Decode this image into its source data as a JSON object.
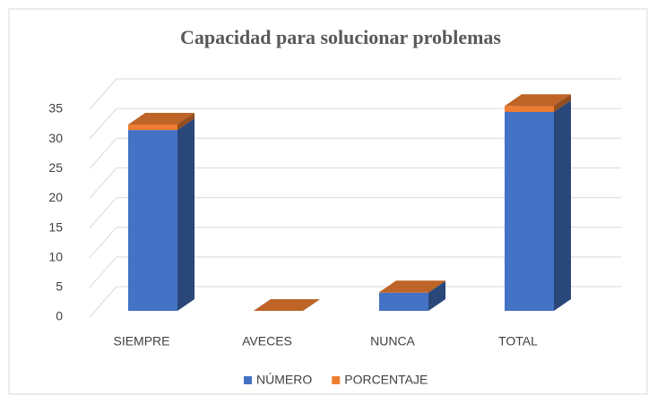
{
  "chart_data": {
    "type": "bar3d_stacked",
    "title": "Capacidad para solucionar problemas",
    "categories": [
      "SIEMPRE",
      "AVECES",
      "NUNCA",
      "TOTAL"
    ],
    "series": [
      {
        "name": "NÚMERO",
        "color": "#4472c4",
        "values": [
          30,
          0,
          3,
          33
        ]
      },
      {
        "name": "PORCENTAJE",
        "color": "#ed7d31",
        "values": [
          0.91,
          0,
          0.09,
          1
        ]
      }
    ],
    "ylim": [
      0,
      35
    ],
    "yticks": [
      0,
      5,
      10,
      15,
      20,
      25,
      30,
      35
    ],
    "grid": true,
    "legend": "bottom"
  }
}
